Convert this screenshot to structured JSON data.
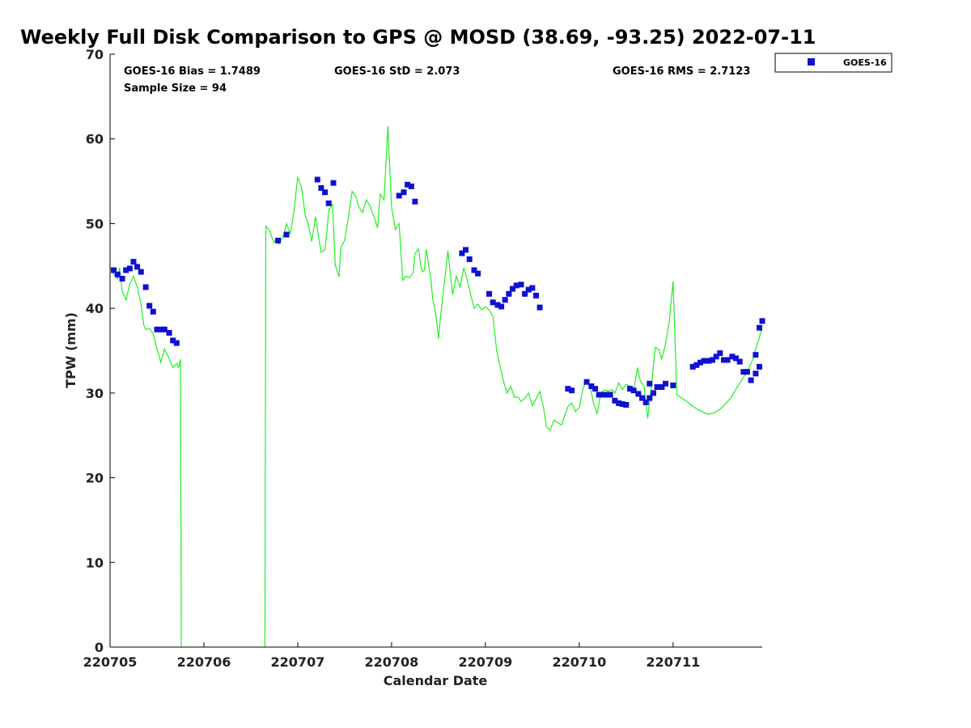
{
  "chart_data": {
    "type": "scatter",
    "title": "Weekly Full Disk Comparison to GPS @ MOSD (38.69, -93.25) 2022-07-11",
    "xlabel": "Calendar Date",
    "ylabel": "TPW (mm)",
    "xlim": [
      0,
      6.95
    ],
    "ylim": [
      0,
      70
    ],
    "yticks": [
      0,
      10,
      20,
      30,
      40,
      50,
      60,
      70
    ],
    "xticks": [
      {
        "value": 0,
        "label": "220705"
      },
      {
        "value": 1,
        "label": "220706"
      },
      {
        "value": 2,
        "label": "220707"
      },
      {
        "value": 3,
        "label": "220708"
      },
      {
        "value": 4,
        "label": "220709"
      },
      {
        "value": 5,
        "label": "220710"
      },
      {
        "value": 6,
        "label": "220711"
      }
    ],
    "stats": {
      "bias": "GOES-16 Bias = 1.7489",
      "std": "GOES-16 StD = 2.073",
      "rms": "GOES-16 RMS = 2.7123",
      "sample": "Sample Size = 94"
    },
    "legend": {
      "label": "GOES-16",
      "position": "outside-top-right"
    },
    "colors": {
      "goes": "#1010d0",
      "gps": "#22ee22"
    },
    "series": [
      {
        "name": "GOES-16",
        "kind": "points",
        "x": [
          0.04,
          0.08,
          0.13,
          0.17,
          0.21,
          0.25,
          0.29,
          0.33,
          0.38,
          0.42,
          0.46,
          0.5,
          0.54,
          0.58,
          0.63,
          0.67,
          0.71,
          1.79,
          1.88,
          2.21,
          2.25,
          2.29,
          2.33,
          2.38,
          3.08,
          3.13,
          3.17,
          3.21,
          3.25,
          3.75,
          3.79,
          3.83,
          3.88,
          3.92,
          4.04,
          4.08,
          4.13,
          4.17,
          4.21,
          4.25,
          4.29,
          4.33,
          4.38,
          4.42,
          4.46,
          4.5,
          4.54,
          4.58,
          4.88,
          4.92,
          5.08,
          5.13,
          5.17,
          5.21,
          5.25,
          5.29,
          5.33,
          5.38,
          5.42,
          5.46,
          5.5,
          5.54,
          5.58,
          5.63,
          5.67,
          5.71,
          5.75,
          5.79,
          5.83,
          5.88,
          5.92,
          6.21,
          6.25,
          6.29,
          6.33,
          6.38,
          6.42,
          6.46,
          6.5,
          6.54,
          6.58,
          6.63,
          6.67,
          6.71,
          6.75,
          6.79,
          6.83,
          6.88,
          6.92,
          5.75,
          6.0,
          6.88,
          6.92,
          6.95
        ],
        "y": [
          44.5,
          44.0,
          43.5,
          44.5,
          44.7,
          45.5,
          44.9,
          44.3,
          42.5,
          40.3,
          39.6,
          37.5,
          37.5,
          37.5,
          37.1,
          36.2,
          35.9,
          48.0,
          48.7,
          55.2,
          54.2,
          53.7,
          52.4,
          54.8,
          53.3,
          53.7,
          54.6,
          54.4,
          52.6,
          46.5,
          46.9,
          45.8,
          44.5,
          44.1,
          41.7,
          40.7,
          40.4,
          40.2,
          41.0,
          41.7,
          42.3,
          42.7,
          42.8,
          41.7,
          42.2,
          42.4,
          41.5,
          40.1,
          30.5,
          30.3,
          31.3,
          30.8,
          30.5,
          29.8,
          29.8,
          29.8,
          29.8,
          29.1,
          28.8,
          28.7,
          28.6,
          30.5,
          30.3,
          29.9,
          29.4,
          28.9,
          29.4,
          30.0,
          30.7,
          30.7,
          31.1,
          33.1,
          33.3,
          33.6,
          33.8,
          33.8,
          33.9,
          34.3,
          34.7,
          33.9,
          33.9,
          34.3,
          34.1,
          33.7,
          32.5,
          32.5,
          31.5,
          32.3,
          33.1,
          31.1,
          30.9,
          34.5,
          37.7,
          38.5
        ]
      },
      {
        "name": "GPS",
        "kind": "line",
        "segments": [
          {
            "x": [
              0.0,
              0.04,
              0.08,
              0.1,
              0.13,
              0.17,
              0.21,
              0.25,
              0.29,
              0.33,
              0.36,
              0.38,
              0.42,
              0.46,
              0.5,
              0.52,
              0.54,
              0.58,
              0.62,
              0.67,
              0.71,
              0.73,
              0.75,
              0.76
            ],
            "y": [
              44.8,
              44.0,
              43.5,
              44.8,
              42.0,
              41.0,
              42.8,
              43.8,
              42.5,
              40.5,
              38.0,
              37.5,
              37.6,
              37.0,
              35.2,
              34.5,
              33.6,
              35.2,
              34.3,
              33.0,
              33.5,
              33.0,
              34.0,
              0.0
            ]
          },
          {
            "x": [
              1.65,
              1.66,
              1.7,
              1.73,
              1.75,
              1.77,
              1.8,
              1.85,
              1.88,
              1.92,
              1.96,
              2.0,
              2.04,
              2.08,
              2.11,
              2.15,
              2.19,
              2.22,
              2.25,
              2.29,
              2.31,
              2.33,
              2.37,
              2.4,
              2.44,
              2.46,
              2.5,
              2.54,
              2.58,
              2.62,
              2.65,
              2.69,
              2.73,
              2.77,
              2.81,
              2.85,
              2.88,
              2.92,
              2.96,
              3.0,
              3.04,
              3.08,
              3.12,
              3.15,
              3.19,
              3.23,
              3.25,
              3.29,
              3.31,
              3.33,
              3.35,
              3.37,
              3.4,
              3.42,
              3.44,
              3.46,
              3.48,
              3.5,
              3.52,
              3.56,
              3.6,
              3.65,
              3.69,
              3.73,
              3.77,
              3.81,
              3.85,
              3.88,
              3.92,
              3.96,
              4.0,
              4.04,
              4.08,
              4.1,
              4.12,
              4.15,
              4.19,
              4.23,
              4.27,
              4.31,
              4.35,
              4.38,
              4.42,
              4.46,
              4.5,
              4.54,
              4.58,
              4.62,
              4.65,
              4.69,
              4.73,
              4.77,
              4.81,
              4.85,
              4.88,
              4.92,
              4.96,
              5.0,
              5.04,
              5.08,
              5.12,
              5.15,
              5.19,
              5.23,
              5.27,
              5.31,
              5.35,
              5.38,
              5.42,
              5.46,
              5.5,
              5.54,
              5.58,
              5.62,
              5.65,
              5.69,
              5.73,
              5.77,
              5.81,
              5.85,
              5.88,
              5.92,
              5.96,
              6.0,
              6.04,
              6.08,
              6.12,
              6.15,
              6.19,
              6.23,
              6.27,
              6.31,
              6.35,
              6.38,
              6.42,
              6.46,
              6.5,
              6.54,
              6.58,
              6.62,
              6.65,
              6.69,
              6.73,
              6.77,
              6.81,
              6.85,
              6.88,
              6.92,
              6.95
            ],
            "y": [
              0.0,
              49.7,
              49.2,
              48.2,
              47.8,
              48.2,
              47.6,
              48.6,
              50.0,
              48.8,
              51.5,
              55.5,
              54.3,
              51.0,
              50.0,
              47.9,
              50.8,
              48.6,
              46.6,
              46.9,
              49.0,
              51.5,
              52.3,
              45.1,
              43.7,
              47.2,
              48.0,
              50.8,
              53.8,
              53.2,
              52.0,
              51.3,
              52.8,
              52.1,
              50.9,
              49.5,
              53.5,
              52.8,
              61.5,
              52.0,
              49.3,
              50.0,
              43.3,
              43.8,
              43.6,
              44.2,
              46.5,
              47.0,
              45.0,
              44.3,
              44.5,
              47.0,
              44.8,
              43.3,
              41.0,
              40.0,
              38.5,
              36.4,
              38.8,
              42.8,
              46.8,
              41.6,
              43.8,
              42.5,
              44.8,
              43.2,
              41.3,
              40.0,
              40.5,
              39.8,
              40.2,
              39.8,
              39.0,
              37.0,
              35.0,
              33.5,
              31.5,
              30.0,
              30.8,
              29.5,
              29.5,
              29.0,
              29.4,
              30.0,
              28.5,
              29.3,
              30.2,
              28.2,
              26.0,
              25.6,
              26.8,
              26.5,
              26.2,
              27.5,
              28.4,
              28.8,
              27.8,
              28.3,
              30.5,
              31.5,
              30.5,
              28.9,
              27.5,
              30.0,
              30.4,
              30.2,
              30.4,
              30.0,
              31.2,
              30.4,
              31.0,
              30.8,
              30.3,
              33.0,
              31.5,
              30.8,
              27.0,
              31.0,
              35.4,
              35.1,
              34.0,
              35.8,
              38.5,
              43.2,
              29.8,
              29.5,
              29.2,
              29.0,
              28.6,
              28.3,
              28.0,
              27.8,
              27.6,
              27.5,
              27.6,
              27.8,
              28.1,
              28.5,
              29.0,
              29.5,
              30.1,
              30.8,
              31.5,
              32.2,
              33.0,
              34.0,
              35.2,
              36.5,
              38.0
            ]
          }
        ]
      }
    ]
  }
}
